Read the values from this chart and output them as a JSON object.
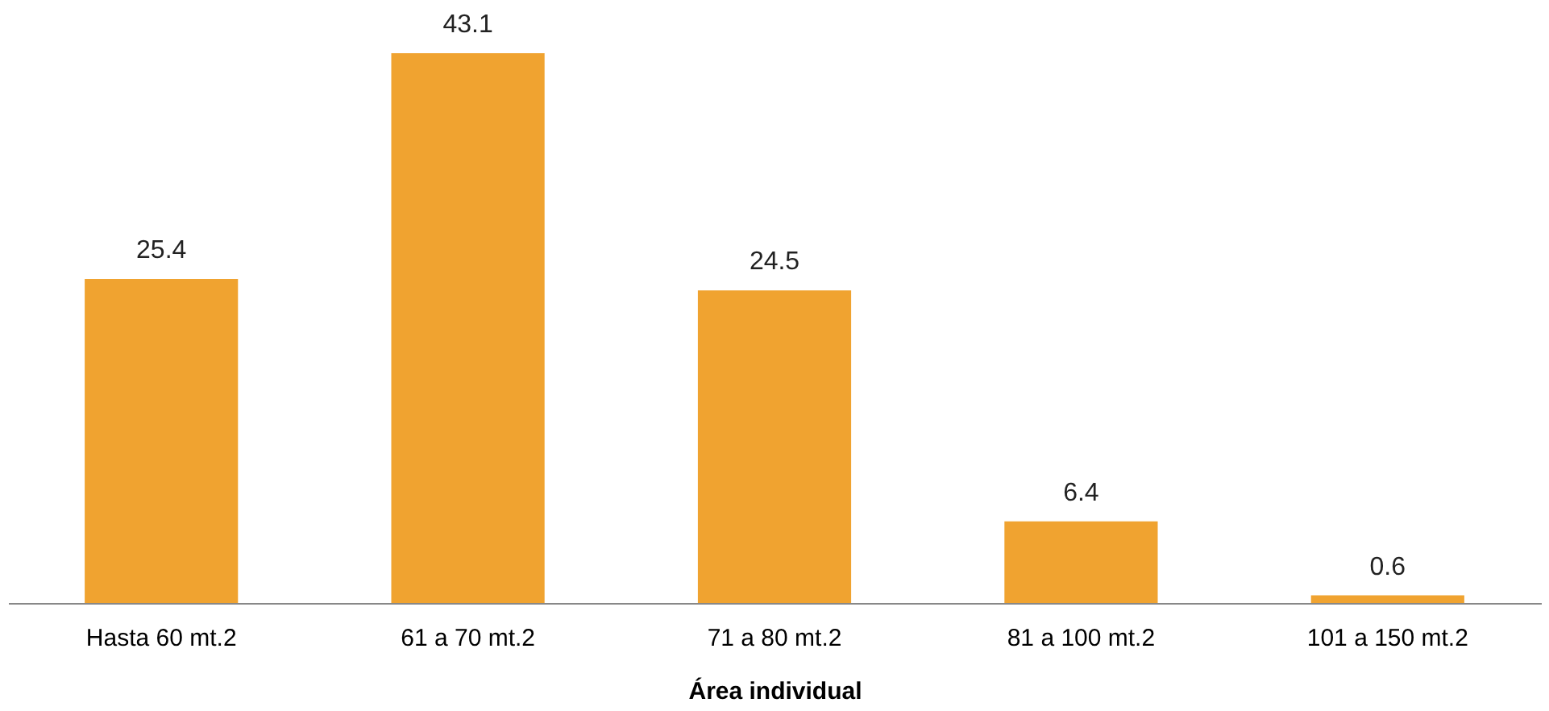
{
  "chart_data": {
    "type": "bar",
    "xlabel": "Área individual",
    "categories": [
      "Hasta 60 mt.2",
      "61 a 70 mt.2",
      "71 a 80 mt.2",
      "81 a 100 mt.2",
      "101 a 150 mt.2"
    ],
    "values": [
      25.4,
      43.1,
      24.5,
      6.4,
      0.6
    ],
    "color": "#f0a330",
    "data_labels": true
  }
}
